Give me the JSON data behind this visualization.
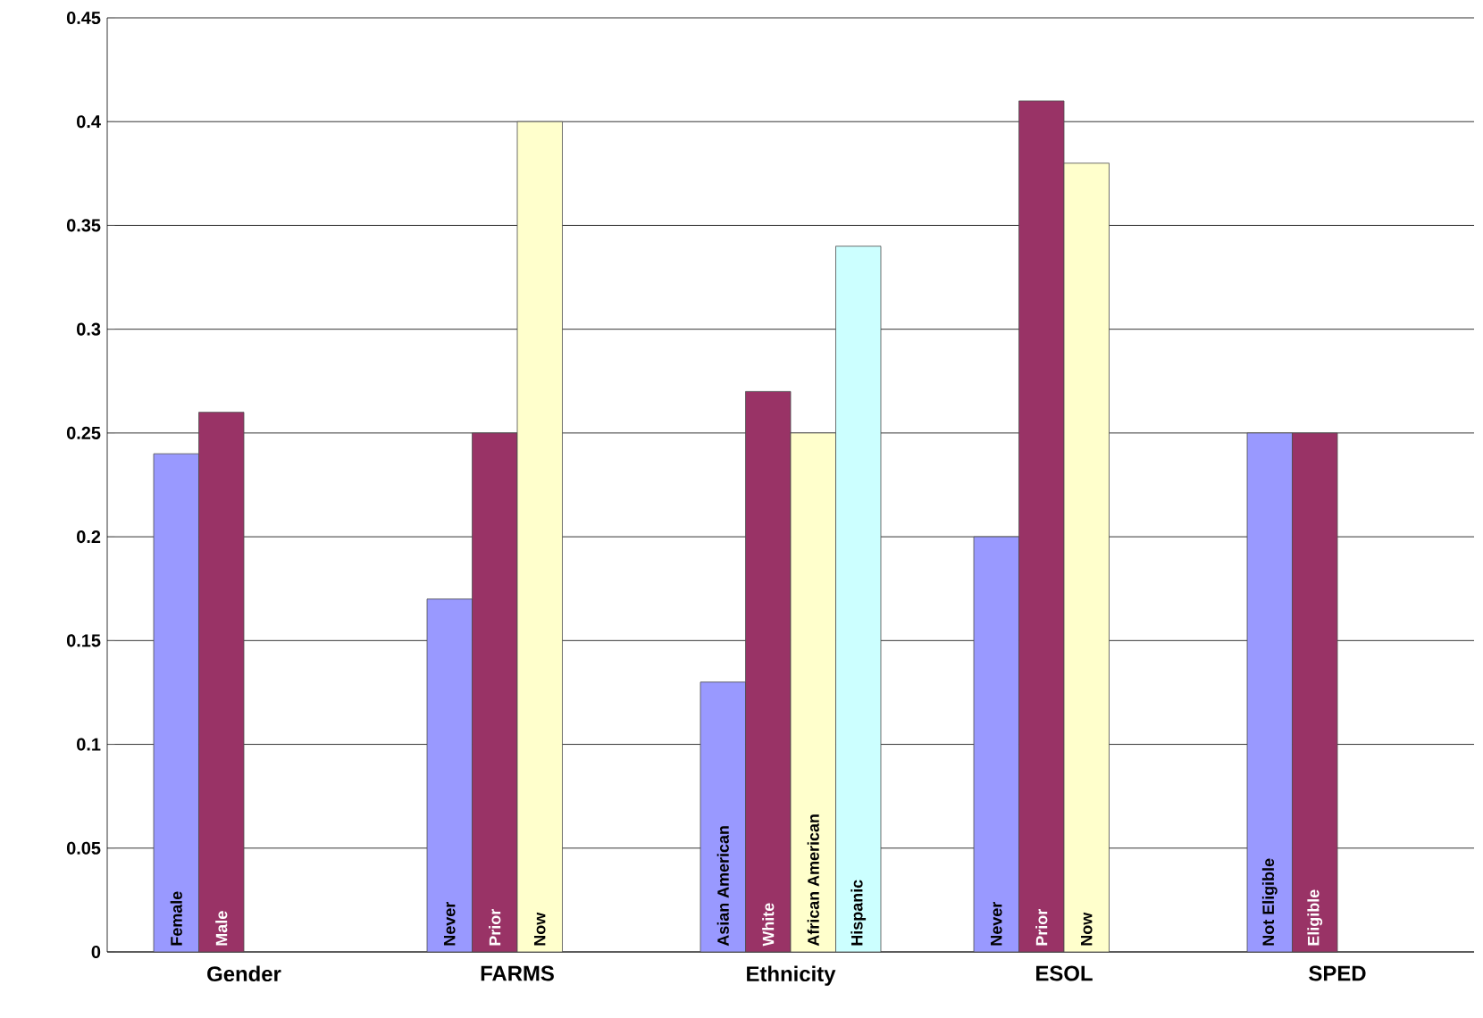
{
  "chart_data": {
    "type": "bar",
    "categories": [
      "Gender",
      "FARMS",
      "Ethnicity",
      "ESOL",
      "SPED"
    ],
    "series": [
      {
        "color": "#9999ff",
        "values": [
          0.24,
          0.17,
          0.13,
          0.2,
          0.25
        ]
      },
      {
        "color": "#993366",
        "values": [
          0.26,
          0.25,
          0.27,
          0.41,
          0.25
        ]
      },
      {
        "color": "#ffffcc",
        "values": [
          null,
          0.4,
          0.25,
          0.38,
          null
        ]
      },
      {
        "color": "#ccffff",
        "values": [
          null,
          null,
          0.34,
          null,
          null
        ]
      }
    ],
    "annotations": [
      "Female",
      "Male",
      "Never",
      "Prior",
      "Now",
      "Asian American",
      "White",
      "African American",
      "Hispanic",
      "Never",
      "Prior",
      "Now",
      "Not Eligible",
      "Eligible"
    ],
    "ylim": [
      0,
      0.45
    ],
    "yticks": [
      0,
      0.05,
      0.1,
      0.15,
      0.2,
      0.25,
      0.3,
      0.35,
      0.4,
      0.45
    ],
    "grid": "y"
  }
}
